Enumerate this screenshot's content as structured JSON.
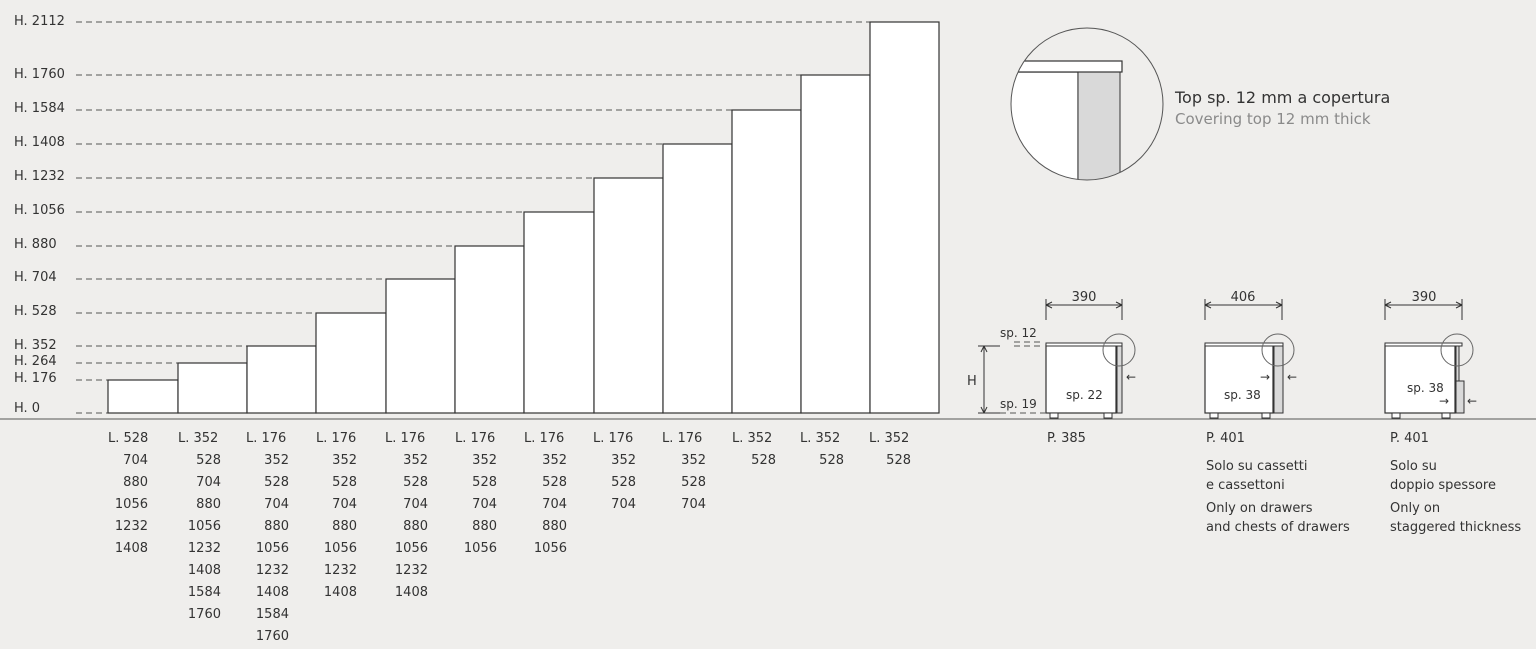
{
  "heights": [
    "H. 0",
    "H. 176",
    "H. 264",
    "H. 352",
    "H. 528",
    "H. 704",
    "H. 880",
    "H. 1056",
    "H. 1232",
    "H. 1408",
    "H. 1584",
    "H. 1760",
    "H. 2112"
  ],
  "columns": [
    {
      "label": "L. 528",
      "values": [
        "704",
        "880",
        "1056",
        "1232",
        "1408"
      ]
    },
    {
      "label": "L. 352",
      "values": [
        "528",
        "704",
        "880",
        "1056",
        "1232",
        "1408",
        "1584",
        "1760"
      ]
    },
    {
      "label": "L. 176",
      "values": [
        "352",
        "528",
        "704",
        "880",
        "1056",
        "1232",
        "1408",
        "1584",
        "1760"
      ]
    },
    {
      "label": "L. 176",
      "values": [
        "352",
        "528",
        "704",
        "880",
        "1056",
        "1232",
        "1408"
      ]
    },
    {
      "label": "L. 176",
      "values": [
        "352",
        "528",
        "704",
        "880",
        "1056",
        "1232",
        "1408"
      ]
    },
    {
      "label": "L. 176",
      "values": [
        "352",
        "528",
        "704",
        "880",
        "1056"
      ]
    },
    {
      "label": "L. 176",
      "values": [
        "352",
        "528",
        "704",
        "880",
        "1056"
      ]
    },
    {
      "label": "L. 176",
      "values": [
        "352",
        "528",
        "704"
      ]
    },
    {
      "label": "L. 176",
      "values": [
        "352",
        "528",
        "704"
      ]
    },
    {
      "label": "L. 352",
      "values": [
        "528"
      ]
    },
    {
      "label": "L. 352",
      "values": [
        "528"
      ]
    },
    {
      "label": "L. 352",
      "values": [
        "528"
      ]
    }
  ],
  "detail": {
    "title": "Top sp. 12 mm a copertura",
    "subtitle": "Covering top 12 mm thick"
  },
  "sections": [
    {
      "width": "390",
      "page": "P. 385",
      "thickness": "sp. 22",
      "top_label": "sp. 12",
      "base_label": "sp. 19",
      "height_label": "H",
      "notes": []
    },
    {
      "width": "406",
      "page": "P. 401",
      "thickness": "sp. 38",
      "notes": [
        "Solo su cassetti",
        "e cassettoni",
        "Only on drawers",
        "and chests of drawers"
      ]
    },
    {
      "width": "390",
      "page": "P. 401",
      "thickness": "sp. 38",
      "notes": [
        "Solo su",
        "doppio spessore",
        "Only on",
        "staggered thickness"
      ]
    }
  ]
}
